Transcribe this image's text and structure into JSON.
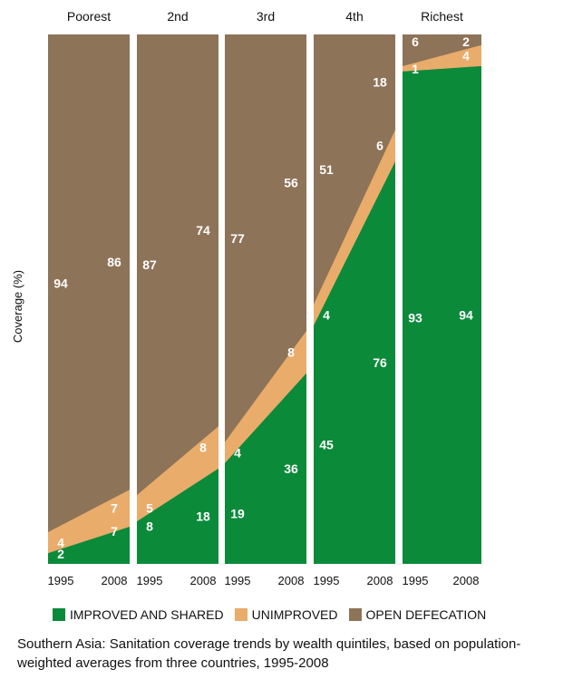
{
  "chart_data": {
    "type": "area",
    "categories": [
      "Poorest",
      "2nd",
      "3rd",
      "4th",
      "Richest"
    ],
    "x_tick_labels": [
      "1995",
      "2008"
    ],
    "ylabel": "Coverage (%)",
    "ylim": [
      0,
      100
    ],
    "series": [
      {
        "name": "IMPROVED AND SHARED",
        "color": "#0b8a3a",
        "values": [
          [
            2,
            7
          ],
          [
            8,
            18
          ],
          [
            19,
            36
          ],
          [
            45,
            76
          ],
          [
            93,
            94
          ]
        ]
      },
      {
        "name": "UNIMPROVED",
        "color": "#e9ac6a",
        "values": [
          [
            4,
            7
          ],
          [
            5,
            8
          ],
          [
            4,
            8
          ],
          [
            4,
            6
          ],
          [
            1,
            4
          ]
        ]
      },
      {
        "name": "OPEN DEFECATION",
        "color": "#8d7358",
        "values": [
          [
            94,
            86
          ],
          [
            87,
            74
          ],
          [
            77,
            56
          ],
          [
            51,
            18
          ],
          [
            6,
            2
          ]
        ]
      }
    ],
    "legend_position": "bottom",
    "grid": false
  },
  "caption": "Southern Asia: Sanitation coverage trends by wealth quintiles, based on population-weighted averages from three countries, 1995-2008"
}
